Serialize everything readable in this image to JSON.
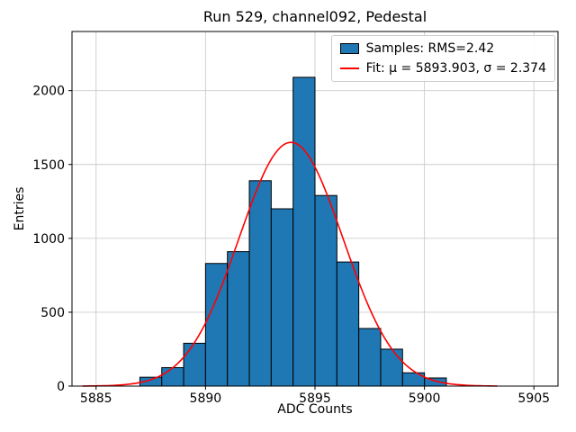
{
  "chart_data": {
    "type": "bar",
    "subtype": "histogram",
    "title": "Run 529, channel092, Pedestal",
    "xlabel": "ADC Counts",
    "ylabel": "Entries",
    "xlim": [
      5883.9,
      5906.1
    ],
    "ylim": [
      0,
      2400
    ],
    "xticks": [
      5885,
      5890,
      5895,
      5900,
      5905
    ],
    "yticks": [
      0,
      500,
      1000,
      1500,
      2000
    ],
    "grid": true,
    "grid_color": "#cccccc",
    "bin_start": 5887,
    "bin_width": 1,
    "counts": [
      60,
      125,
      290,
      830,
      910,
      1390,
      1200,
      2090,
      1290,
      840,
      390,
      250,
      90,
      55
    ],
    "bar_color": "#1f77b4",
    "bar_edge_color": "#000000",
    "fit": {
      "mu": 5893.903,
      "sigma": 2.374,
      "amplitude": 1650,
      "color": "#ff0000",
      "x_range": [
        5884.4,
        5903.3
      ]
    },
    "rms": 2.42,
    "legend": {
      "position": "upper right",
      "entries": [
        "Samples: RMS=2.42",
        "Fit: μ = 5893.903, σ = 2.374"
      ]
    }
  }
}
